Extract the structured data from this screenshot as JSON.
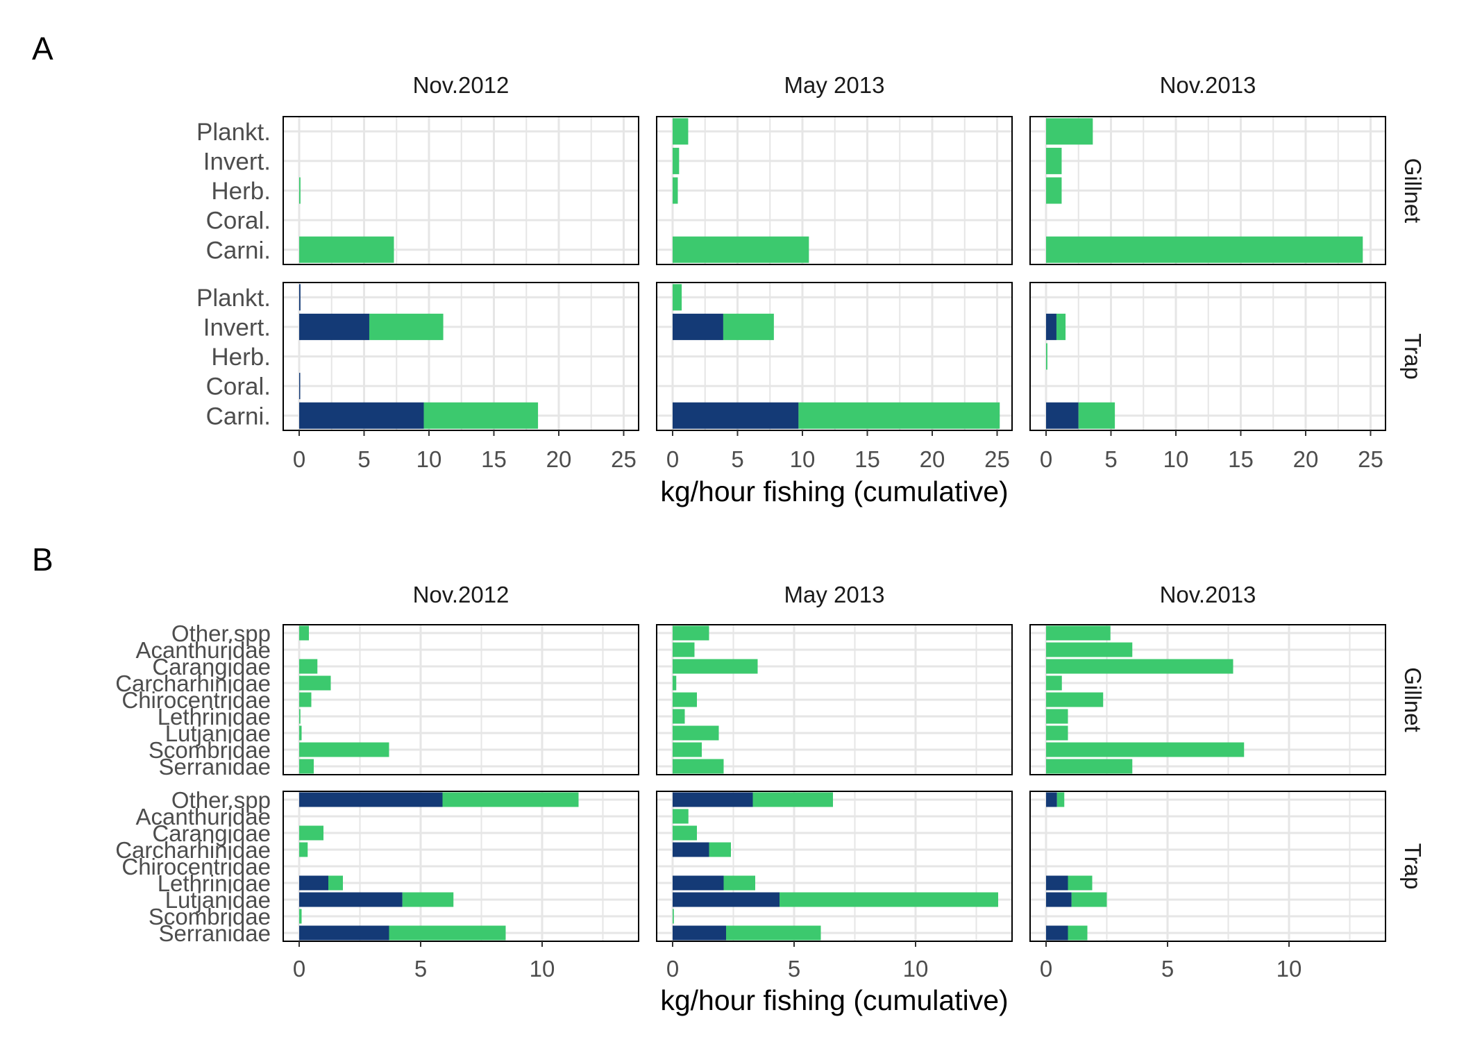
{
  "colors": {
    "dark": "#143A76",
    "green": "#3CC96E",
    "grid": "#E6E6E6",
    "frame": "#000000",
    "text": "#4D4D4D"
  },
  "figure": {
    "columns": [
      "Nov.2012",
      "May 2013",
      "Nov.2013"
    ],
    "rows": [
      "Gillnet",
      "Trap"
    ]
  },
  "panel_labels": [
    "A",
    "B"
  ],
  "chart_data": [
    {
      "type": "bar",
      "stacked": true,
      "orientation": "horizontal",
      "label": "A",
      "xlabel": "kg/hour fishing (cumulative)",
      "xlim": [
        0,
        25
      ],
      "xticks": [
        0,
        5,
        10,
        15,
        20,
        25
      ],
      "categories": [
        "Plankt.",
        "Invert.",
        "Herb.",
        "Coral.",
        "Carni."
      ],
      "facets": {
        "Gillnet": {
          "Nov.2012": {
            "dark": [
              0,
              0,
              0,
              0,
              0
            ],
            "green": [
              0,
              0,
              0.1,
              0,
              7.3
            ]
          },
          "May 2013": {
            "dark": [
              0,
              0,
              0,
              0,
              0
            ],
            "green": [
              1.2,
              0.5,
              0.4,
              0,
              10.5
            ]
          },
          "Nov.2013": {
            "dark": [
              0,
              0,
              0,
              0,
              0
            ],
            "green": [
              3.6,
              1.2,
              1.2,
              0,
              24.4
            ]
          }
        },
        "Trap": {
          "Nov.2012": {
            "dark": [
              0.1,
              5.4,
              0,
              0.05,
              9.6
            ],
            "green": [
              0,
              5.7,
              0,
              0,
              8.8
            ]
          },
          "May 2013": {
            "dark": [
              0,
              3.9,
              0,
              0,
              9.7
            ],
            "green": [
              0.7,
              3.9,
              0,
              0,
              15.5
            ]
          },
          "Nov.2013": {
            "dark": [
              0,
              0.8,
              0,
              0,
              2.5
            ],
            "green": [
              0,
              0.7,
              0.1,
              0,
              2.8
            ]
          }
        }
      }
    },
    {
      "type": "bar",
      "stacked": true,
      "orientation": "horizontal",
      "label": "B",
      "xlabel": "kg/hour fishing (cumulative)",
      "xlim": [
        0,
        13.5
      ],
      "xticks": [
        0,
        5,
        10
      ],
      "categories": [
        "Other.spp",
        "Acanthuridae",
        "Carangidae",
        "Carcharhinidae",
        "Chirocentridae",
        "Lethrinidae",
        "Lutjanidae",
        "Scombridae",
        "Serranidae"
      ],
      "facets": {
        "Gillnet": {
          "Nov.2012": {
            "dark": [
              0,
              0,
              0,
              0,
              0,
              0,
              0,
              0,
              0
            ],
            "green": [
              0.4,
              0,
              0.75,
              1.3,
              0.5,
              0.05,
              0.1,
              3.7,
              0.6
            ]
          },
          "May 2013": {
            "dark": [
              0,
              0,
              0,
              0,
              0,
              0,
              0,
              0,
              0
            ],
            "green": [
              1.5,
              0.9,
              3.5,
              0.15,
              1.0,
              0.5,
              1.9,
              1.2,
              2.1
            ]
          },
          "Nov.2013": {
            "dark": [
              0,
              0,
              0,
              0,
              0,
              0,
              0,
              0,
              0
            ],
            "green": [
              2.65,
              3.55,
              7.7,
              0.65,
              2.35,
              0.9,
              0.9,
              8.15,
              3.55
            ]
          }
        },
        "Trap": {
          "Nov.2012": {
            "dark": [
              5.9,
              0,
              0,
              0,
              0,
              1.2,
              4.25,
              0,
              3.7
            ],
            "green": [
              5.6,
              0,
              1.0,
              0.35,
              0,
              0.6,
              2.1,
              0.1,
              4.8
            ]
          },
          "May 2013": {
            "dark": [
              3.3,
              0,
              0,
              1.5,
              0,
              2.1,
              4.4,
              0,
              2.2
            ],
            "green": [
              3.3,
              0.65,
              1.0,
              0.9,
              0,
              1.3,
              9.0,
              0.05,
              3.9
            ]
          },
          "Nov.2013": {
            "dark": [
              0.45,
              0,
              0,
              0,
              0,
              0.9,
              1.05,
              0,
              0.9
            ],
            "green": [
              0.3,
              0,
              0,
              0,
              0,
              1.0,
              1.45,
              0,
              0.8
            ]
          }
        }
      }
    }
  ]
}
